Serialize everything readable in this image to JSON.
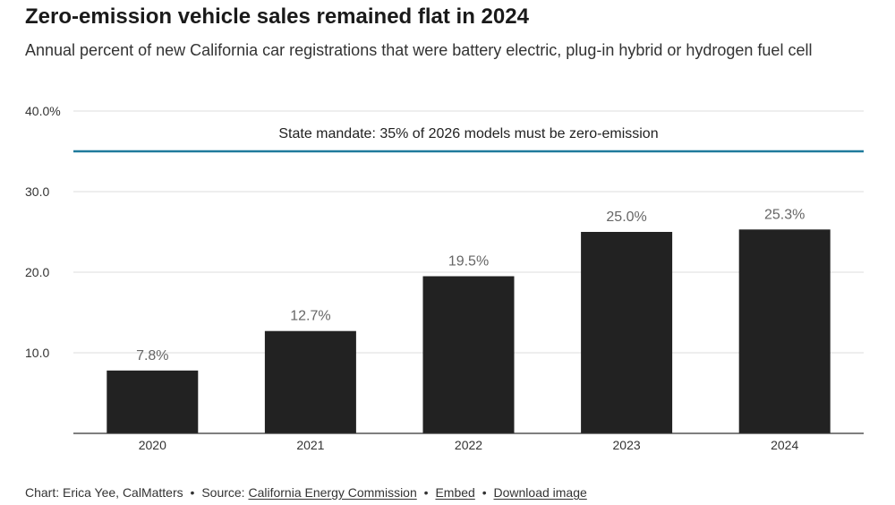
{
  "title": "Zero-emission vehicle sales remained flat in 2024",
  "subtitle": "Annual percent of new California car registrations that were battery electric, plug-in hybrid or hydrogen fuel cell",
  "chart_data": {
    "type": "bar",
    "categories": [
      "2020",
      "2021",
      "2022",
      "2023",
      "2024"
    ],
    "values": [
      7.8,
      12.7,
      19.5,
      25.0,
      25.3
    ],
    "value_labels": [
      "7.8%",
      "12.7%",
      "19.5%",
      "25.0%",
      "25.3%"
    ],
    "y_ticks": [
      10,
      20,
      30,
      40
    ],
    "y_tick_labels": [
      "10.0",
      "20.0",
      "30.0",
      "40.0%"
    ],
    "ylim": [
      0,
      40
    ],
    "grid": true,
    "bar_color": "#222222",
    "reference_line": {
      "value": 35,
      "label": "State mandate: 35% of 2026 models must be zero-emission",
      "color": "#1f7a9c"
    },
    "title": "Zero-emission vehicle sales remained flat in 2024",
    "subtitle": "Annual percent of new California car registrations that were battery electric, plug-in hybrid or hydrogen fuel cell",
    "xlabel": "",
    "ylabel": ""
  },
  "footer": {
    "chart_credit": "Chart: Erica Yee, CalMatters",
    "separator": "•",
    "source_prefix": "Source:",
    "source_link": "California Energy Commission",
    "embed_link": "Embed",
    "download_link": "Download image"
  }
}
